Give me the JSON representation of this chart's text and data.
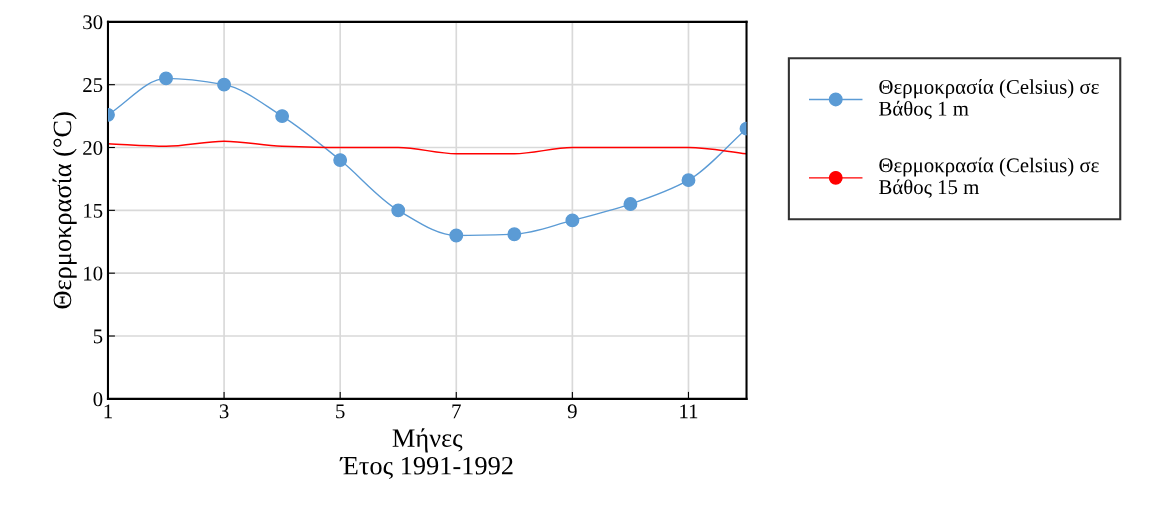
{
  "chart_data": {
    "type": "line",
    "xlabel": "Μήνες\nΈτος 1991-1992",
    "ylabel": "Θερμοκρασία (°C)",
    "x": [
      1,
      2,
      3,
      4,
      5,
      6,
      7,
      8,
      9,
      10,
      11,
      12
    ],
    "series": [
      {
        "name": "Θερμοκρασία (Celsius) σε Βάθος 1 m",
        "color": "#5b9bd5",
        "marker": "circle",
        "values": [
          22.6,
          25.5,
          25.0,
          22.5,
          19.0,
          15.0,
          13.0,
          13.1,
          14.2,
          15.5,
          17.4,
          21.5
        ]
      },
      {
        "name": "Θερμοκρασία (Celsius) σε Βάθος 15 m",
        "color": "#ff0000",
        "marker": "none",
        "values": [
          20.3,
          20.1,
          20.5,
          20.1,
          20.0,
          20.0,
          19.5,
          19.5,
          20.0,
          20.0,
          20.0,
          19.5
        ]
      }
    ],
    "xlim": [
      1,
      12
    ],
    "xticks": [
      1,
      3,
      5,
      7,
      9,
      11
    ],
    "ylim": [
      0,
      30
    ],
    "yticks": [
      0,
      5,
      10,
      15,
      20,
      25,
      30
    ],
    "grid": true,
    "legend": "right",
    "line_style": "solid"
  }
}
